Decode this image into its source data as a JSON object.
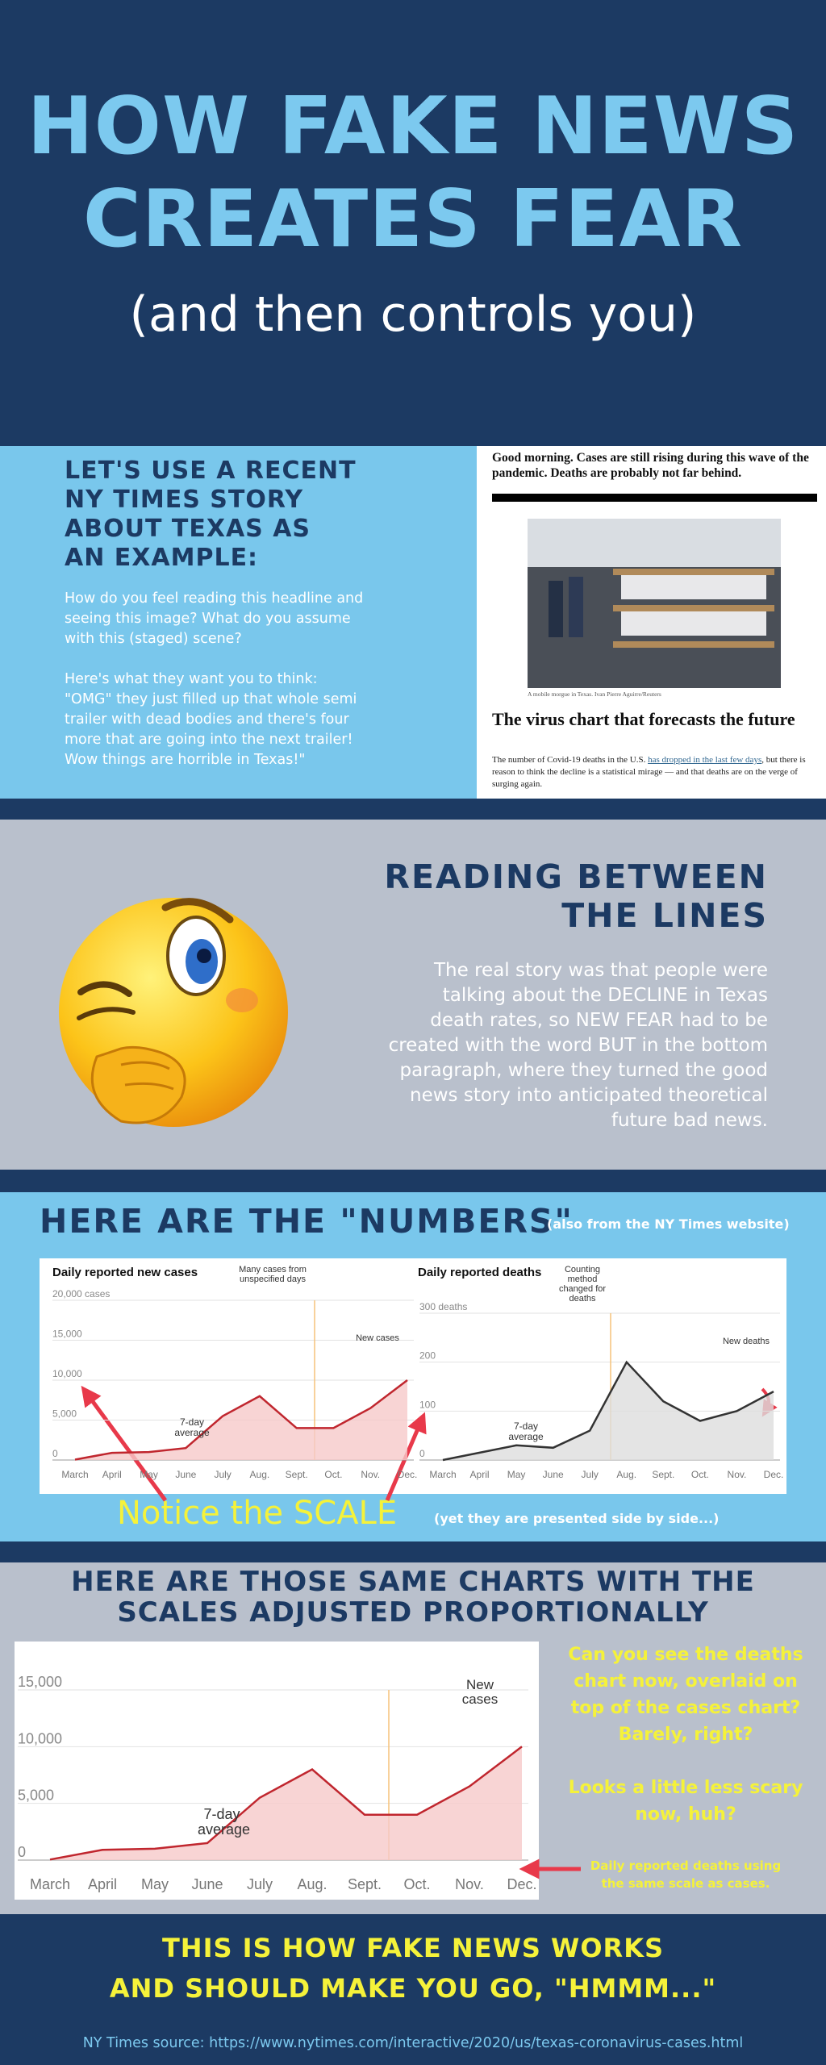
{
  "header": {
    "title_lines": [
      "HOW FAKE NEWS",
      "CREATES FEAR"
    ],
    "subtitle": "(and then controls you)"
  },
  "intro": {
    "heading_lines": [
      "LET'S USE A RECENT",
      "NY TIMES STORY",
      "ABOUT TEXAS AS",
      "AN EXAMPLE:"
    ],
    "paragraphs": [
      "How do you feel reading this headline and seeing this image? What do you assume with this (staged) scene?",
      "Here's what they want you to think: \"OMG\" they just filled up that whole semi trailer with dead bodies and there's four more that are going into the next trailer! Wow things are horrible in Texas!\""
    ]
  },
  "article": {
    "lede": "Good morning. Cases are still rising during this wave of the pandemic. Deaths are probably not far behind.",
    "caption": "A mobile morgue in Texas. Ivan Pierre Aguirre/Reuters",
    "headline": "The virus chart that forecasts the future",
    "body_start": "The number of Covid-19 deaths in the U.S. ",
    "body_link": "has dropped in the last few days",
    "body_end": ", but there is reason to think the decline is a statistical mirage — and that deaths are on the verge of surging again."
  },
  "reading": {
    "heading_lines": [
      "READING BETWEEN",
      "THE LINES"
    ],
    "paragraph": "The real story was that people were talking about the DECLINE in Texas death rates, so NEW FEAR had to be created with the word BUT in the bottom paragraph, where they turned the good news story into anticipated theoretical future bad news."
  },
  "numbers": {
    "heading": "HERE ARE THE \"NUMBERS\"",
    "note": "(also from the NY Times website)",
    "callout": "Notice the SCALE",
    "callout_note": "(yet they are presented side by side...)"
  },
  "chart_data": [
    {
      "type": "line",
      "title": "Daily reported new cases",
      "categories": [
        "March",
        "April",
        "May",
        "June",
        "July",
        "Aug.",
        "Sept.",
        "Oct.",
        "Nov.",
        "Dec."
      ],
      "series": [
        {
          "name": "7-day average",
          "color": "#c0262e",
          "values": [
            50,
            900,
            1000,
            1500,
            5500,
            8000,
            4000,
            4000,
            6500,
            10000
          ]
        }
      ],
      "ylim": [
        0,
        20000
      ],
      "yticks": [
        0,
        {
          "value": 5000,
          "label": "5,000"
        },
        {
          "value": 10000,
          "label": "10,000"
        },
        {
          "value": 15000,
          "label": "15,000"
        },
        {
          "value": 20000,
          "label": "20,000 cases"
        }
      ],
      "annotations": [
        "Many cases from unspecified days",
        "New cases"
      ],
      "grid": true
    },
    {
      "type": "line",
      "title": "Daily reported deaths",
      "categories": [
        "March",
        "April",
        "May",
        "June",
        "July",
        "Aug.",
        "Sept.",
        "Oct.",
        "Nov.",
        "Dec."
      ],
      "series": [
        {
          "name": "7-day average",
          "color": "#333333",
          "values": [
            0,
            15,
            30,
            25,
            60,
            200,
            120,
            80,
            100,
            140
          ]
        }
      ],
      "ylim": [
        0,
        300
      ],
      "yticks": [
        0,
        100,
        200,
        {
          "value": 300,
          "label": "300 deaths"
        }
      ],
      "annotations": [
        "Counting method changed for deaths",
        "New deaths"
      ],
      "grid": true
    },
    {
      "type": "line",
      "categories": [
        "March",
        "April",
        "May",
        "June",
        "July",
        "Aug.",
        "Sept.",
        "Oct.",
        "Nov.",
        "Dec."
      ],
      "series": [
        {
          "name": "7-day average",
          "color": "#c0262e",
          "values": [
            50,
            900,
            1000,
            1500,
            5500,
            8000,
            4000,
            4000,
            6500,
            10000
          ]
        }
      ],
      "ylim": [
        0,
        15000
      ],
      "yticks": [
        0,
        {
          "value": 5000,
          "label": "5,000"
        },
        {
          "value": 10000,
          "label": "10,000"
        },
        {
          "value": 15000,
          "label": "15,000"
        }
      ],
      "annotations": [
        "New cases"
      ],
      "grid": true
    }
  ],
  "adjusted": {
    "heading_lines": [
      "HERE ARE THOSE SAME CHARTS WITH THE",
      "SCALES ADJUSTED PROPORTIONALLY"
    ],
    "questions": [
      "Can you see the deaths chart now, overlaid on top of the cases chart? Barely, right?",
      "Looks a little less scary now, huh?"
    ],
    "arrow_note": "Daily reported deaths using the same scale as cases."
  },
  "footer": {
    "lines": [
      "THIS IS HOW FAKE NEWS WORKS",
      "AND SHOULD MAKE YOU GO, \"HMMM...\""
    ],
    "source": "NY Times source: https://www.nytimes.com/interactive/2020/us/texas-coronavirus-cases.html"
  }
}
